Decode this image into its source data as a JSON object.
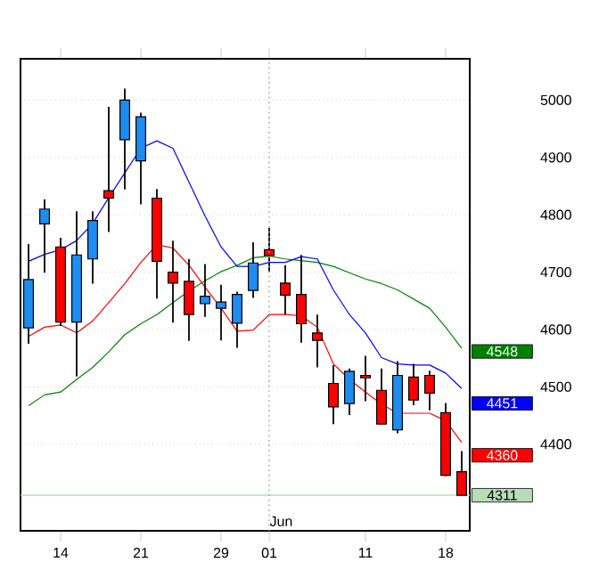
{
  "chart_data": {
    "type": "candlestick",
    "categories": [
      null,
      null,
      "14",
      null,
      null,
      null,
      null,
      "21",
      null,
      null,
      null,
      null,
      "29",
      null,
      null,
      "01",
      null,
      null,
      null,
      null,
      null,
      "11",
      null,
      null,
      null,
      null,
      "18",
      null
    ],
    "ohlc": [
      [
        4603,
        4749,
        4575,
        4687
      ],
      [
        4784,
        4827,
        4699,
        4810
      ],
      [
        4744,
        4760,
        4606,
        4613
      ],
      [
        4613,
        4806,
        4518,
        4730
      ],
      [
        4723,
        4806,
        4680,
        4790
      ],
      [
        4842,
        4988,
        4770,
        4829
      ],
      [
        4931,
        5020,
        4844,
        5000
      ],
      [
        4894,
        4978,
        4818,
        4971
      ],
      [
        4829,
        4845,
        4654,
        4719
      ],
      [
        4700,
        4755,
        4612,
        4681
      ],
      [
        4684,
        4723,
        4580,
        4626
      ],
      [
        4645,
        4714,
        4622,
        4658
      ],
      [
        4637,
        4678,
        4581,
        4648
      ],
      [
        4611,
        4666,
        4568,
        4661
      ],
      [
        4668,
        4752,
        4655,
        4716
      ],
      [
        4739,
        4777,
        4700,
        4729
      ],
      [
        4681,
        4712,
        4626,
        4660
      ],
      [
        4661,
        4730,
        4577,
        4610
      ],
      [
        4594,
        4626,
        4534,
        4581
      ],
      [
        4506,
        4538,
        4435,
        4465
      ],
      [
        4471,
        4532,
        4451,
        4527
      ],
      [
        4520,
        4554,
        4475,
        4516
      ],
      [
        4494,
        4532,
        4435,
        4435
      ],
      [
        4425,
        4545,
        4419,
        4520
      ],
      [
        4517,
        4540,
        4468,
        4477
      ],
      [
        4520,
        4528,
        4459,
        4489
      ],
      [
        4455,
        4472,
        4344,
        4346
      ],
      [
        4352,
        4388,
        4311,
        4311
      ]
    ],
    "colors": [
      "#1e8cf0",
      "#1e8cf0",
      "#ff0000",
      "#1e8cf0",
      "#1e8cf0",
      "#ff0000",
      "#1e8cf0",
      "#1e8cf0",
      "#ff0000",
      "#ff0000",
      "#ff0000",
      "#1e8cf0",
      "#1e8cf0",
      "#1e8cf0",
      "#1e8cf0",
      "#ff0000",
      "#ff0000",
      "#ff0000",
      "#ff0000",
      "#ff0000",
      "#1e8cf0",
      "#ff0000",
      "#ff0000",
      "#1e8cf0",
      "#ff0000",
      "#ff0000",
      "#ff0000",
      "#ff0000"
    ],
    "series": [
      {
        "type": "line",
        "color": "#008000",
        "values": [
          4467,
          4486,
          4491,
          4513,
          4534,
          4561,
          4591,
          4610,
          4626,
          4647,
          4667,
          4685,
          4701,
          4712,
          4725,
          4728,
          4723,
          4720,
          4717,
          4710,
          4699,
          4688,
          4680,
          4669,
          4653,
          4637,
          4604,
          4567
        ]
      },
      {
        "type": "line",
        "color": "#0000ff",
        "values": [
          4719,
          4731,
          4739,
          4755,
          4785,
          4830,
          4873,
          4916,
          4929,
          4916,
          4857,
          4798,
          4744,
          4710,
          4710,
          4717,
          4717,
          4727,
          4723,
          4669,
          4626,
          4594,
          4551,
          4540,
          4538,
          4538,
          4524,
          4497
        ]
      },
      {
        "type": "line",
        "color": "#ff0000",
        "values": [
          4588,
          4604,
          4608,
          4594,
          4615,
          4647,
          4680,
          4717,
          4748,
          4742,
          4712,
          4674,
          4637,
          4597,
          4599,
          4626,
          4626,
          4624,
          4604,
          4540,
          4513,
          4491,
          4470,
          4454,
          4454,
          4454,
          4441,
          4403
        ]
      }
    ],
    "ylim": [
      4249,
      5072
    ],
    "yticks": [
      4400,
      4500,
      4600,
      4700,
      4800,
      4900,
      5000
    ],
    "grid": "y",
    "ref_lines": [
      {
        "axis": "y",
        "value": 4311,
        "label": "4311",
        "color": "#b8dcb8"
      },
      {
        "axis": "x",
        "value": "01",
        "line_style": "dotted",
        "color": "#aaaaaa"
      }
    ],
    "annotations": [
      "4548",
      "4451",
      "4360",
      "Jun"
    ]
  }
}
